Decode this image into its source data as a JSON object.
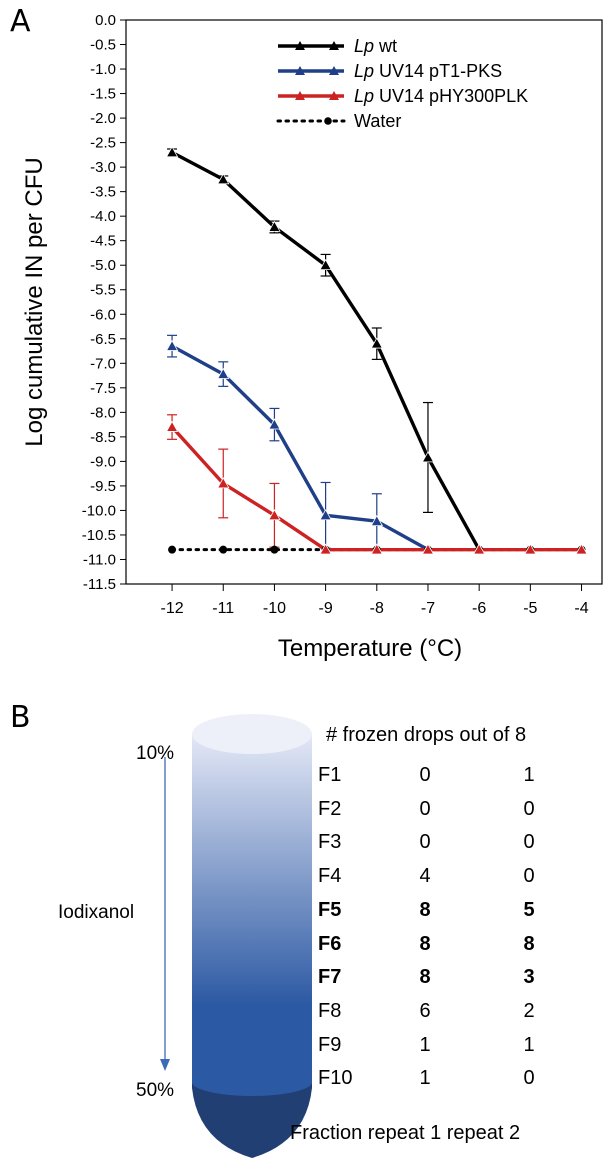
{
  "panel_a_label": "A",
  "panel_b_label": "B",
  "chart_data": {
    "type": "line",
    "title": "",
    "xlabel": "Temperature (°C)",
    "ylabel": "Log cumulative IN per CFU",
    "x": [
      -12,
      -11,
      -10,
      -9,
      -8,
      -7,
      -6,
      -5,
      -4
    ],
    "xlim": [
      -12.9,
      -3.6
    ],
    "ylim": [
      -11.5,
      0.0
    ],
    "yticks": [
      0.0,
      -0.5,
      -1.0,
      -1.5,
      -2.0,
      -2.5,
      -3.0,
      -3.5,
      -4.0,
      -4.5,
      -5.0,
      -5.5,
      -6.0,
      -6.5,
      -7.0,
      -7.5,
      -8.0,
      -8.5,
      -9.0,
      -9.5,
      -10.0,
      -10.5,
      -11.0,
      -11.5
    ],
    "ytick_labels": [
      "0.0",
      "-0.5",
      "-1.0",
      "-1.5",
      "-2.0",
      "-2.5",
      "-3.0",
      "-3.5",
      "-4.0",
      "-4.5",
      "-5.0",
      "-5.5",
      "-6.0",
      "-6.5",
      "-7.0",
      "-7.5",
      "-8.0",
      "-8.5",
      "-9.0",
      "-9.5",
      "-10.0",
      "-10.5",
      "-11.0",
      "-11.5"
    ],
    "xticks": [
      -12,
      -11,
      -10,
      -9,
      -8,
      -7,
      -6,
      -5,
      -4
    ],
    "xtick_labels": [
      "-12",
      "-11",
      "-10",
      "-9",
      "-8",
      "-7",
      "-6",
      "-5",
      "-4"
    ],
    "grid": false,
    "legend_position": "top-right",
    "series": [
      {
        "legend_italic": "Lp",
        "legend_rest": " wt",
        "color": "#000000",
        "marker": "triangle",
        "line": "solid",
        "points": [
          {
            "x": -12,
            "y": -2.7,
            "err": 0.07
          },
          {
            "x": -11,
            "y": -3.25,
            "err": 0.07
          },
          {
            "x": -10,
            "y": -4.22,
            "err": 0.12
          },
          {
            "x": -9,
            "y": -5.0,
            "err": 0.22
          },
          {
            "x": -8,
            "y": -6.6,
            "err": 0.32
          },
          {
            "x": -7,
            "y": -8.92,
            "err": 1.12
          },
          {
            "x": -6,
            "y": -10.8,
            "err": 0
          }
        ]
      },
      {
        "legend_italic": "Lp",
        "legend_rest": " UV14 pT1-PKS",
        "color": "#1f3f88",
        "marker": "triangle",
        "line": "solid",
        "points": [
          {
            "x": -12,
            "y": -6.65,
            "err": 0.22
          },
          {
            "x": -11,
            "y": -7.22,
            "err": 0.25
          },
          {
            "x": -10,
            "y": -8.25,
            "err": 0.33
          },
          {
            "x": -9,
            "y": -10.1,
            "err": 0.67
          },
          {
            "x": -8,
            "y": -10.22,
            "err": 0.56
          },
          {
            "x": -7,
            "y": -10.8,
            "err": 0
          }
        ]
      },
      {
        "legend_italic": "Lp",
        "legend_rest": " UV14 pHY300PLK",
        "color": "#cc2222",
        "marker": "triangle",
        "line": "solid",
        "points": [
          {
            "x": -12,
            "y": -8.3,
            "err": 0.25
          },
          {
            "x": -11,
            "y": -9.45,
            "err": 0.7
          },
          {
            "x": -10,
            "y": -10.1,
            "err": 0.65
          },
          {
            "x": -9,
            "y": -10.8,
            "err": 0
          },
          {
            "x": -8,
            "y": -10.8,
            "err": 0
          },
          {
            "x": -7,
            "y": -10.8,
            "err": 0
          },
          {
            "x": -6,
            "y": -10.8,
            "err": 0
          },
          {
            "x": -5,
            "y": -10.8,
            "err": 0
          },
          {
            "x": -4,
            "y": -10.8,
            "err": 0
          }
        ]
      },
      {
        "legend_italic": "",
        "legend_rest": "Water",
        "color": "#000000",
        "marker": "circle",
        "line": "dotted",
        "points": [
          {
            "x": -12,
            "y": -10.8,
            "err": 0
          },
          {
            "x": -11,
            "y": -10.8,
            "err": 0
          },
          {
            "x": -10,
            "y": -10.8,
            "err": 0
          },
          {
            "x": -9,
            "y": -10.8,
            "err": 0
          },
          {
            "x": -8,
            "y": -10.8,
            "err": 0
          },
          {
            "x": -7,
            "y": -10.8,
            "err": 0
          },
          {
            "x": -6,
            "y": -10.8,
            "err": 0
          },
          {
            "x": -5,
            "y": -10.8,
            "err": 0
          },
          {
            "x": -4,
            "y": -10.8,
            "err": 0
          }
        ]
      }
    ]
  },
  "gradient": {
    "top_label": "10%",
    "bottom_label": "50%",
    "side_label": "Iodixanol",
    "top_color": "#e4e8f6",
    "bottom_color": "#2c59a3",
    "tip_color": "#223f74"
  },
  "fractions": {
    "header": "# frozen drops out of 8",
    "footer": "Fraction repeat 1 repeat 2",
    "rows": [
      {
        "label": "F1",
        "r1": "0",
        "r2": "1",
        "bold": false
      },
      {
        "label": "F2",
        "r1": "0",
        "r2": "0",
        "bold": false
      },
      {
        "label": "F3",
        "r1": "0",
        "r2": "0",
        "bold": false
      },
      {
        "label": "F4",
        "r1": "4",
        "r2": "0",
        "bold": false
      },
      {
        "label": "F5",
        "r1": "8",
        "r2": "5",
        "bold": true
      },
      {
        "label": "F6",
        "r1": "8",
        "r2": "8",
        "bold": true
      },
      {
        "label": "F7",
        "r1": "8",
        "r2": "3",
        "bold": true
      },
      {
        "label": "F8",
        "r1": "6",
        "r2": "2",
        "bold": false
      },
      {
        "label": "F9",
        "r1": "1",
        "r2": "1",
        "bold": false
      },
      {
        "label": "F10",
        "r1": "1",
        "r2": "0",
        "bold": false
      }
    ]
  }
}
